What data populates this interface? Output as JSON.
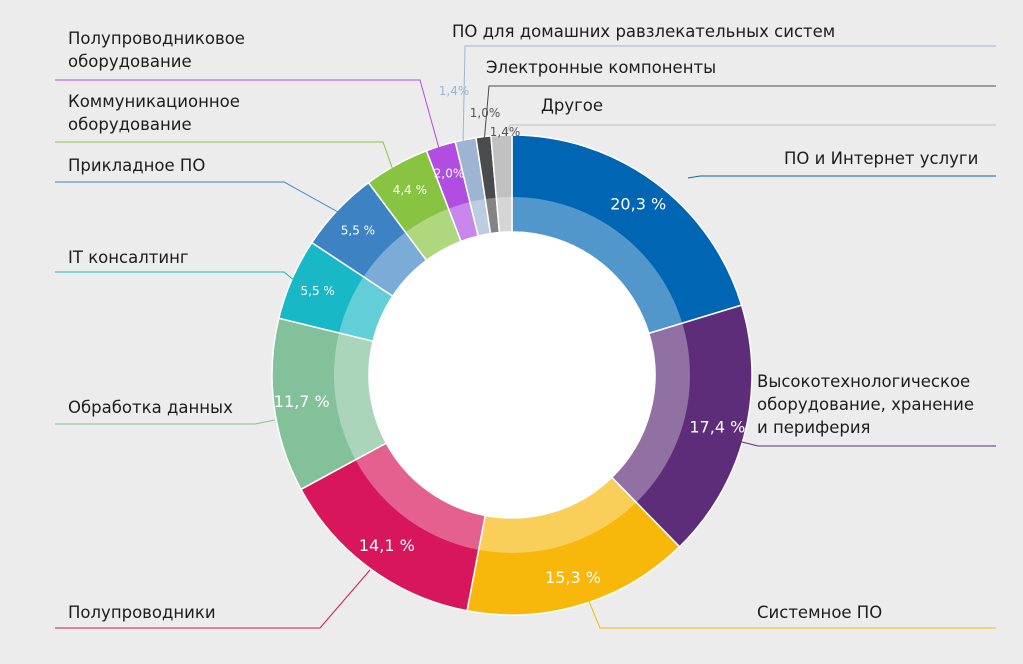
{
  "chart_data": {
    "type": "donut",
    "title": "",
    "series": [
      {
        "category": "ПО и Интернет услуги",
        "value": 20.3,
        "value_label": "20,3 %",
        "color": "#0066b3"
      },
      {
        "category": "Высокотехнологическое\nоборудование, хранение\nи периферия",
        "value": 17.4,
        "value_label": "17,4 %",
        "color": "#5e2d7a"
      },
      {
        "category": "Системное ПО",
        "value": 15.3,
        "value_label": "15,3 %",
        "color": "#f7b70b"
      },
      {
        "category": "Полупроводники",
        "value": 14.1,
        "value_label": "14,1 %",
        "color": "#d8165b"
      },
      {
        "category": "Обработка данных",
        "value": 11.7,
        "value_label": "11,7 %",
        "color": "#82c19a"
      },
      {
        "category": "IT консалтинг",
        "value": 5.5,
        "value_label": "5,5 %",
        "color": "#19b8c6"
      },
      {
        "category": "Прикладное ПО",
        "value": 5.5,
        "value_label": "5,5 %",
        "color": "#3d83c4"
      },
      {
        "category": "Коммуникационное\nоборудование",
        "value": 4.4,
        "value_label": "4,4 %",
        "color": "#88c441"
      },
      {
        "category": "Полупроводниковое\nоборудование",
        "value": 2.0,
        "value_label": "2,0%",
        "color": "#b14de0"
      },
      {
        "category": "ПО для домашних равзлекательных систем",
        "value": 1.4,
        "value_label": "1,4%",
        "color": "#9db5d3"
      },
      {
        "category": "Электронные компоненты",
        "value": 1.0,
        "value_label": "1,0%",
        "color": "#4a4b4d"
      },
      {
        "category": "Другое",
        "value": 1.4,
        "value_label": "1,4%",
        "color": "#c1c1c1"
      }
    ]
  }
}
